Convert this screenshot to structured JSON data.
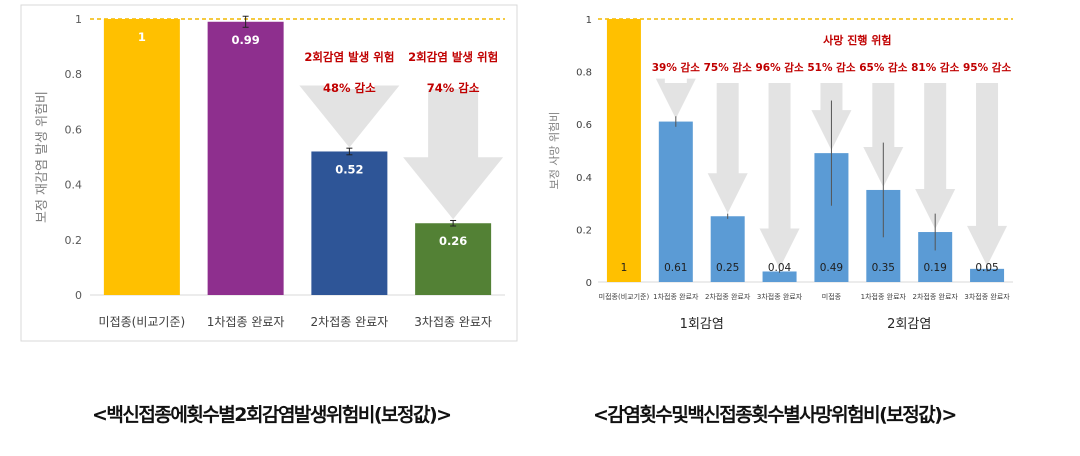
{
  "chart_data": [
    {
      "type": "bar",
      "ylabel": "보정 재감염 발생 위험비",
      "ylim": [
        0,
        1
      ],
      "yticks": [
        "0",
        "0.2",
        "0.4",
        "0.6",
        "0.8",
        "1"
      ],
      "reference_line": 1,
      "categories": [
        "미접종(비교기준)",
        "1차접종 완료자",
        "2차접종 완료자",
        "3차접종 완료자"
      ],
      "values": [
        1,
        0.99,
        0.52,
        0.26
      ],
      "value_labels": [
        "1",
        "0.99",
        "0.52",
        "0.26"
      ],
      "colors": [
        "#ffc000",
        "#8e2f8e",
        "#2e5597",
        "#538135"
      ],
      "error": [
        null,
        0.02,
        0.012,
        0.01
      ],
      "annotations": [
        {
          "line1": "2회감염 발생 위험",
          "line2": "48% 감소",
          "category": 2
        },
        {
          "line1": "2회감염 발생 위험",
          "line2": "74% 감소",
          "category": 3
        }
      ],
      "annotation_color": "#c00000"
    },
    {
      "type": "bar",
      "ylabel": "보정 사망 위험비",
      "ylim": [
        0,
        1
      ],
      "yticks": [
        "0",
        "0.2",
        "0.4",
        "0.6",
        "0.8",
        "1"
      ],
      "reference_line": 1,
      "categories": [
        "미접종(비교기준)",
        "1차접종 완료자",
        "2차접종 완료자",
        "3차접종 완료자",
        "미접종",
        "1차접종 완료자",
        "2차접종 완료자",
        "3차접종 완료자"
      ],
      "values": [
        1,
        0.61,
        0.25,
        0.04,
        0.49,
        0.35,
        0.19,
        0.05
      ],
      "value_labels": [
        "1",
        "0.61",
        "0.25",
        "0.04",
        "0.49",
        "0.35",
        "0.19",
        "0.05"
      ],
      "colors": [
        "#ffc000",
        "#5b9bd5",
        "#5b9bd5",
        "#5b9bd5",
        "#5b9bd5",
        "#5b9bd5",
        "#5b9bd5",
        "#5b9bd5"
      ],
      "error": [
        null,
        0.02,
        0.01,
        0.005,
        0.2,
        0.18,
        0.07,
        0.01
      ],
      "groups": [
        {
          "label": "1회감염",
          "categories": [
            0,
            1,
            2,
            3
          ]
        },
        {
          "label": "2회감염",
          "categories": [
            4,
            5,
            6,
            7
          ]
        }
      ],
      "header_annotation": "사망 진행 위험",
      "annotations": [
        {
          "line1": "39% 감소",
          "category": 1
        },
        {
          "line1": "75% 감소",
          "category": 2
        },
        {
          "line1": "96% 감소",
          "category": 3
        },
        {
          "line1": "51% 감소",
          "category": 4
        },
        {
          "line1": "65% 감소",
          "category": 5
        },
        {
          "line1": "81% 감소",
          "category": 6
        },
        {
          "line1": "95% 감소",
          "category": 7
        }
      ],
      "annotation_color": "#c00000"
    }
  ],
  "captions": {
    "left": "<백신접종에횟수별2회감염발생위험비(보정값)>",
    "right": "<감염횟수및백신접종횟수별사망위험비(보정값)>"
  }
}
